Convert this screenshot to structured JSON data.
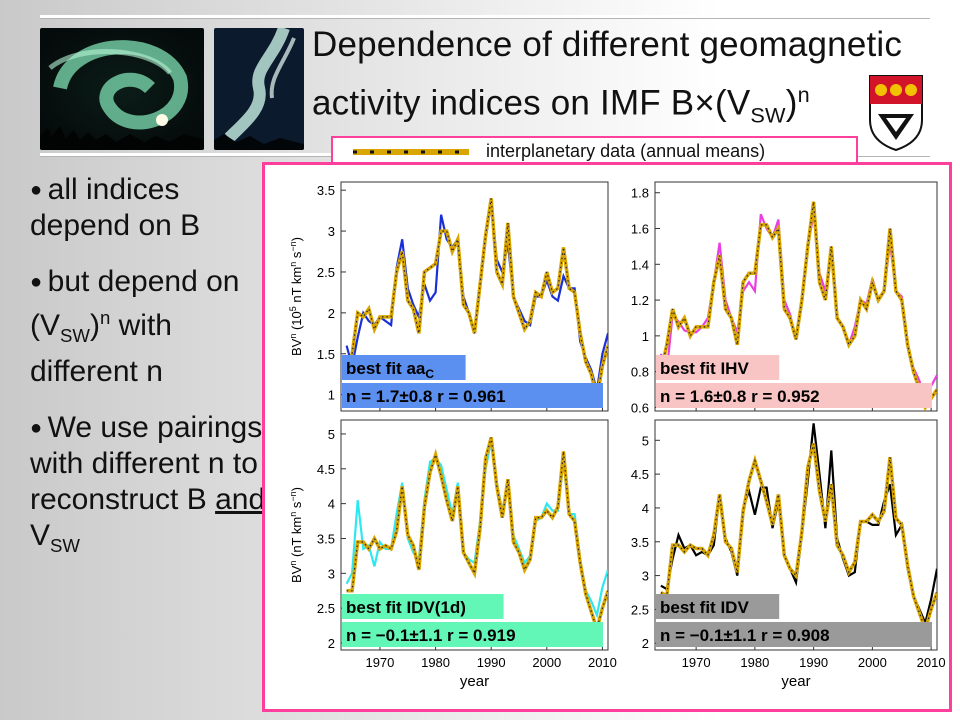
{
  "title": {
    "line1": "Dependence of different geomagnetic",
    "line2_pre": "activity indices on IMF B",
    "line2_times": "×",
    "line2_paren": "(V",
    "line2_sub": "SW",
    "line2_close": ")",
    "line2_sup": "n"
  },
  "legend": {
    "text": "interplanetary data (annual means)"
  },
  "bullets": [
    {
      "text": "all indices depend on B"
    },
    {
      "pre": "but depend on (V",
      "sub": "SW",
      "mid": ")",
      "sup": "n",
      "post": " with different n"
    },
    {
      "pre": "We use pairings with different n to reconstruct B ",
      "u": "and",
      "post2": " V",
      "sub": "SW"
    }
  ],
  "colors": {
    "accent": "#ff3f9c",
    "fit": "#d9a500"
  },
  "chart_data": [
    {
      "type": "line",
      "ylabel_pre": "BV",
      "ylabel_sup1": "n",
      "ylabel_mid": " (10",
      "ylabel_sup2": "5",
      "ylabel_post": " nT km",
      "ylabel_sup3": "n",
      "ylabel_post2": " s",
      "ylabel_sup4": "−n",
      "ylabel_end": ")",
      "xlabel": "",
      "ylim": [
        0.8,
        3.6
      ],
      "xlim": [
        1963,
        2011
      ],
      "yticks": [
        "1",
        "1.5",
        "2",
        "2.5",
        "3",
        "3.5"
      ],
      "xticks": [],
      "box_label": "best fit aa",
      "box_label_sub": "C",
      "stats": "n = 1.7±0.8  r = 0.961",
      "box_color": "#5b8ff0",
      "series": [
        {
          "name": "",
          "color": "#1a2fd8",
          "x": [
            1964,
            1965,
            1966,
            1967,
            1968,
            1969,
            1970,
            1971,
            1972,
            1973,
            1974,
            1975,
            1976,
            1977,
            1978,
            1979,
            1980,
            1981,
            1982,
            1983,
            1984,
            1985,
            1986,
            1987,
            1988,
            1989,
            1990,
            1991,
            1992,
            1993,
            1994,
            1995,
            1996,
            1997,
            1998,
            1999,
            2000,
            2001,
            2002,
            2003,
            2004,
            2005,
            2006,
            2007,
            2008,
            2009,
            2010,
            2011
          ],
          "y": [
            1.6,
            1.35,
            1.7,
            2.0,
            1.9,
            1.85,
            1.95,
            1.9,
            1.85,
            2.55,
            2.9,
            2.3,
            2.1,
            1.95,
            2.35,
            2.15,
            2.25,
            3.2,
            2.9,
            2.8,
            2.9,
            2.2,
            2.0,
            1.75,
            2.3,
            2.9,
            3.35,
            2.65,
            2.5,
            2.85,
            2.2,
            2.05,
            1.9,
            1.85,
            2.2,
            2.2,
            2.4,
            2.2,
            2.15,
            2.45,
            2.3,
            2.3,
            1.65,
            1.45,
            1.3,
            1.05,
            1.5,
            1.75
          ]
        },
        {
          "name": "",
          "color": "#d9a500",
          "x": [
            1964,
            1965,
            1966,
            1967,
            1968,
            1969,
            1970,
            1971,
            1972,
            1973,
            1974,
            1975,
            1976,
            1977,
            1978,
            1979,
            1980,
            1981,
            1982,
            1983,
            1984,
            1985,
            1986,
            1987,
            1988,
            1989,
            1990,
            1991,
            1992,
            1993,
            1994,
            1995,
            1996,
            1997,
            1998,
            1999,
            2000,
            2001,
            2002,
            2003,
            2004,
            2005,
            2006,
            2007,
            2008,
            2009,
            2010,
            2011
          ],
          "y": [
            1.35,
            1.5,
            2.0,
            1.95,
            2.05,
            1.8,
            1.95,
            1.95,
            1.95,
            2.5,
            2.75,
            2.15,
            2.05,
            1.75,
            2.5,
            2.55,
            2.6,
            3.0,
            3.0,
            2.75,
            2.9,
            2.1,
            2.0,
            1.75,
            2.35,
            2.95,
            3.4,
            2.5,
            2.35,
            3.1,
            2.2,
            2.0,
            1.8,
            1.9,
            2.25,
            2.2,
            2.5,
            2.25,
            2.3,
            2.8,
            2.3,
            2.25,
            1.75,
            1.4,
            1.25,
            0.95,
            1.35,
            1.6
          ]
        }
      ]
    },
    {
      "type": "line",
      "ylim": [
        0.58,
        1.86
      ],
      "xlim": [
        1963,
        2011
      ],
      "yticks": [
        "0.6",
        "0.8",
        "1",
        "1.2",
        "1.4",
        "1.6",
        "1.8"
      ],
      "xticks": [],
      "box_label": "best fit IHV",
      "stats": "n = 1.6±0.8 r = 0.952",
      "box_color": "#f9c4c4",
      "series": [
        {
          "name": "",
          "color": "#e93ee0",
          "x": [
            1964,
            1965,
            1966,
            1967,
            1968,
            1969,
            1970,
            1971,
            1972,
            1973,
            1974,
            1975,
            1976,
            1977,
            1978,
            1979,
            1980,
            1981,
            1982,
            1983,
            1984,
            1985,
            1986,
            1987,
            1988,
            1989,
            1990,
            1991,
            1992,
            1993,
            1994,
            1995,
            1996,
            1997,
            1998,
            1999,
            2000,
            2001,
            2002,
            2003,
            2004,
            2005,
            2006,
            2007,
            2008,
            2009,
            2010,
            2011
          ],
          "y": [
            0.9,
            0.8,
            1.12,
            1.08,
            1.03,
            1.02,
            1.02,
            1.05,
            1.1,
            1.3,
            1.52,
            1.2,
            1.1,
            1.02,
            1.25,
            1.3,
            1.25,
            1.68,
            1.6,
            1.55,
            1.65,
            1.2,
            1.12,
            0.98,
            1.2,
            1.5,
            1.68,
            1.35,
            1.25,
            1.45,
            1.1,
            1.05,
            0.95,
            1.05,
            1.2,
            1.18,
            1.32,
            1.2,
            1.25,
            1.52,
            1.25,
            1.22,
            0.95,
            0.82,
            0.75,
            0.62,
            0.72,
            0.78
          ]
        },
        {
          "name": "",
          "color": "#d9a500",
          "x": [
            1964,
            1965,
            1966,
            1967,
            1968,
            1969,
            1970,
            1971,
            1972,
            1973,
            1974,
            1975,
            1976,
            1977,
            1978,
            1979,
            1980,
            1981,
            1982,
            1983,
            1984,
            1985,
            1986,
            1987,
            1988,
            1989,
            1990,
            1991,
            1992,
            1993,
            1994,
            1995,
            1996,
            1997,
            1998,
            1999,
            2000,
            2001,
            2002,
            2003,
            2004,
            2005,
            2006,
            2007,
            2008,
            2009,
            2010,
            2011
          ],
          "y": [
            0.8,
            0.95,
            1.15,
            1.05,
            1.1,
            1.0,
            1.05,
            1.05,
            1.05,
            1.3,
            1.45,
            1.15,
            1.1,
            0.95,
            1.3,
            1.35,
            1.35,
            1.62,
            1.62,
            1.55,
            1.6,
            1.15,
            1.1,
            0.98,
            1.2,
            1.5,
            1.75,
            1.3,
            1.2,
            1.5,
            1.1,
            1.05,
            0.95,
            1.0,
            1.2,
            1.15,
            1.3,
            1.2,
            1.25,
            1.6,
            1.25,
            1.2,
            0.95,
            0.8,
            0.7,
            0.6,
            0.65,
            0.7
          ]
        }
      ]
    },
    {
      "type": "line",
      "ylabel_pre": "BV",
      "ylabel_sup1": "n",
      "ylabel_mid": " (nT km",
      "ylabel_sup3": "n",
      "ylabel_post2": " s",
      "ylabel_sup4": "−n",
      "ylabel_end": ")",
      "xlabel": "year",
      "ylim": [
        1.9,
        5.2
      ],
      "xlim": [
        1963,
        2011
      ],
      "yticks": [
        "2",
        "2.5",
        "3",
        "3.5",
        "4",
        "4.5",
        "5"
      ],
      "xticks": [
        "1970",
        "1980",
        "1990",
        "2000",
        "2010"
      ],
      "box_label": "best fit IDV(1d)",
      "stats": "n = −0.1±1.1  r = 0.919",
      "box_color": "#62f7b6",
      "series": [
        {
          "name": "",
          "color": "#2ee8f0",
          "x": [
            1964,
            1965,
            1966,
            1967,
            1968,
            1969,
            1970,
            1971,
            1972,
            1973,
            1974,
            1975,
            1976,
            1977,
            1978,
            1979,
            1980,
            1981,
            1982,
            1983,
            1984,
            1985,
            1986,
            1987,
            1988,
            1989,
            1990,
            1991,
            1992,
            1993,
            1994,
            1995,
            1996,
            1997,
            1998,
            1999,
            2000,
            2001,
            2002,
            2003,
            2004,
            2005,
            2006,
            2007,
            2008,
            2009,
            2010,
            2011
          ],
          "y": [
            2.85,
            3.0,
            4.05,
            3.35,
            3.4,
            3.1,
            3.45,
            3.35,
            3.35,
            3.85,
            4.3,
            3.5,
            3.3,
            3.2,
            4.05,
            4.6,
            4.65,
            4.55,
            4.2,
            3.85,
            4.3,
            3.3,
            3.2,
            3.15,
            3.75,
            4.5,
            4.9,
            4.3,
            3.9,
            4.2,
            3.55,
            3.35,
            3.15,
            3.25,
            3.75,
            3.8,
            4.0,
            3.9,
            3.9,
            4.6,
            3.85,
            3.85,
            3.2,
            2.75,
            2.6,
            2.4,
            2.8,
            3.05
          ]
        },
        {
          "name": "",
          "color": "#d9a500",
          "x": [
            1964,
            1965,
            1966,
            1967,
            1968,
            1969,
            1970,
            1971,
            1972,
            1973,
            1974,
            1975,
            1976,
            1977,
            1978,
            1979,
            1980,
            1981,
            1982,
            1983,
            1984,
            1985,
            1986,
            1987,
            1988,
            1989,
            1990,
            1991,
            1992,
            1993,
            1994,
            1995,
            1996,
            1997,
            1998,
            1999,
            2000,
            2001,
            2002,
            2003,
            2004,
            2005,
            2006,
            2007,
            2008,
            2009,
            2010,
            2011
          ],
          "y": [
            2.75,
            2.75,
            3.45,
            3.45,
            3.35,
            3.5,
            3.35,
            3.4,
            3.35,
            3.6,
            4.25,
            3.55,
            3.4,
            3.05,
            3.95,
            4.45,
            4.7,
            4.4,
            4.05,
            3.75,
            4.25,
            3.3,
            3.15,
            3.0,
            3.65,
            4.65,
            4.95,
            4.25,
            3.8,
            4.35,
            3.45,
            3.3,
            3.05,
            3.2,
            3.8,
            3.8,
            3.9,
            3.8,
            3.95,
            4.75,
            3.85,
            3.75,
            3.15,
            2.7,
            2.45,
            2.2,
            2.5,
            2.75
          ]
        }
      ]
    },
    {
      "type": "line",
      "xlabel": "year",
      "ylim": [
        1.9,
        5.3
      ],
      "xlim": [
        1963,
        2011
      ],
      "yticks": [
        "2",
        "2.5",
        "3",
        "3.5",
        "4",
        "4.5",
        "5"
      ],
      "xticks": [
        "1970",
        "1980",
        "1990",
        "2000",
        "2010"
      ],
      "box_label": "best fit IDV",
      "stats": "n = −0.1±1.1  r = 0.908",
      "box_color": "#9a9a9a",
      "series": [
        {
          "name": "",
          "color": "#000000",
          "x": [
            1964,
            1965,
            1966,
            1967,
            1968,
            1969,
            1970,
            1971,
            1972,
            1973,
            1974,
            1975,
            1976,
            1977,
            1978,
            1979,
            1980,
            1981,
            1982,
            1983,
            1984,
            1985,
            1986,
            1987,
            1988,
            1989,
            1990,
            1991,
            1992,
            1993,
            1994,
            1995,
            1996,
            1997,
            1998,
            1999,
            2000,
            2001,
            2002,
            2003,
            2004,
            2005,
            2006,
            2007,
            2008,
            2009,
            2010,
            2011
          ],
          "y": [
            2.85,
            2.8,
            3.25,
            3.6,
            3.4,
            3.45,
            3.3,
            3.35,
            3.3,
            3.45,
            4.2,
            3.55,
            3.35,
            3.0,
            4.0,
            4.25,
            3.9,
            4.3,
            4.3,
            3.7,
            4.1,
            3.3,
            3.1,
            2.9,
            3.6,
            4.4,
            5.25,
            4.5,
            3.7,
            4.85,
            3.55,
            3.25,
            3.0,
            3.05,
            3.8,
            3.8,
            3.75,
            3.75,
            4.1,
            4.35,
            3.6,
            3.75,
            3.1,
            2.7,
            2.5,
            2.3,
            2.65,
            3.1
          ]
        },
        {
          "name": "",
          "color": "#d9a500",
          "x": [
            1964,
            1965,
            1966,
            1967,
            1968,
            1969,
            1970,
            1971,
            1972,
            1973,
            1974,
            1975,
            1976,
            1977,
            1978,
            1979,
            1980,
            1981,
            1982,
            1983,
            1984,
            1985,
            1986,
            1987,
            1988,
            1989,
            1990,
            1991,
            1992,
            1993,
            1994,
            1995,
            1996,
            1997,
            1998,
            1999,
            2000,
            2001,
            2002,
            2003,
            2004,
            2005,
            2006,
            2007,
            2008,
            2009,
            2010,
            2011
          ],
          "y": [
            2.75,
            2.7,
            3.45,
            3.45,
            3.35,
            3.45,
            3.4,
            3.4,
            3.3,
            3.6,
            4.2,
            3.5,
            3.4,
            3.05,
            3.95,
            4.4,
            4.7,
            4.4,
            4.1,
            3.75,
            4.2,
            3.3,
            3.1,
            3.0,
            3.65,
            4.6,
            4.95,
            4.25,
            3.8,
            4.35,
            3.45,
            3.3,
            3.05,
            3.2,
            3.8,
            3.8,
            3.9,
            3.8,
            3.95,
            4.75,
            3.85,
            3.75,
            3.15,
            2.7,
            2.45,
            2.2,
            2.5,
            2.75
          ]
        }
      ]
    }
  ]
}
